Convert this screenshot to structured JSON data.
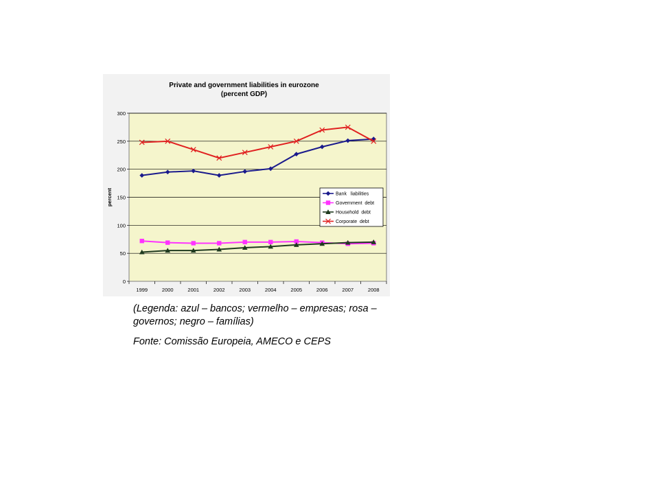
{
  "chart_data": {
    "type": "line",
    "title_lines": [
      "Private and government liabilities in eurozone",
      "(percent GDP)"
    ],
    "xlabel": "",
    "ylabel": "percent",
    "ylim": [
      0,
      300
    ],
    "yticks": [
      0,
      50,
      100,
      150,
      200,
      250,
      300
    ],
    "grid": true,
    "legend_position": "right",
    "categories": [
      "1999",
      "2000",
      "2001",
      "2002",
      "2003",
      "2004",
      "2005",
      "2006",
      "2007",
      "2008"
    ],
    "series": [
      {
        "name": "Bank   liabilities",
        "color": "#1a1a8c",
        "marker": "diamond",
        "values": [
          189,
          195,
          197,
          189,
          196,
          201,
          227,
          240,
          251,
          254
        ]
      },
      {
        "name": "Government  debt",
        "color": "#ff33ff",
        "marker": "square",
        "values": [
          72,
          69,
          68,
          68,
          70,
          70,
          71,
          69,
          67,
          68
        ]
      },
      {
        "name": "Household  debt",
        "color": "#1f3a1f",
        "marker": "triangle",
        "values": [
          52,
          55,
          55,
          57,
          60,
          62,
          65,
          67,
          69,
          70
        ]
      },
      {
        "name": "Corporate  debt",
        "color": "#e02020",
        "marker": "x",
        "values": [
          248,
          250,
          235,
          220,
          230,
          240,
          250,
          270,
          275,
          250
        ]
      }
    ],
    "colors": {
      "plot_background": "#f5f5cc",
      "frame_background": "#f2f2f2"
    }
  },
  "captions": {
    "legend_note": "(Legenda: azul – bancos; vermelho – empresas; rosa – governos; negro – famílias)",
    "source": "Fonte: Comissão Europeia, AMECO e CEPS"
  }
}
